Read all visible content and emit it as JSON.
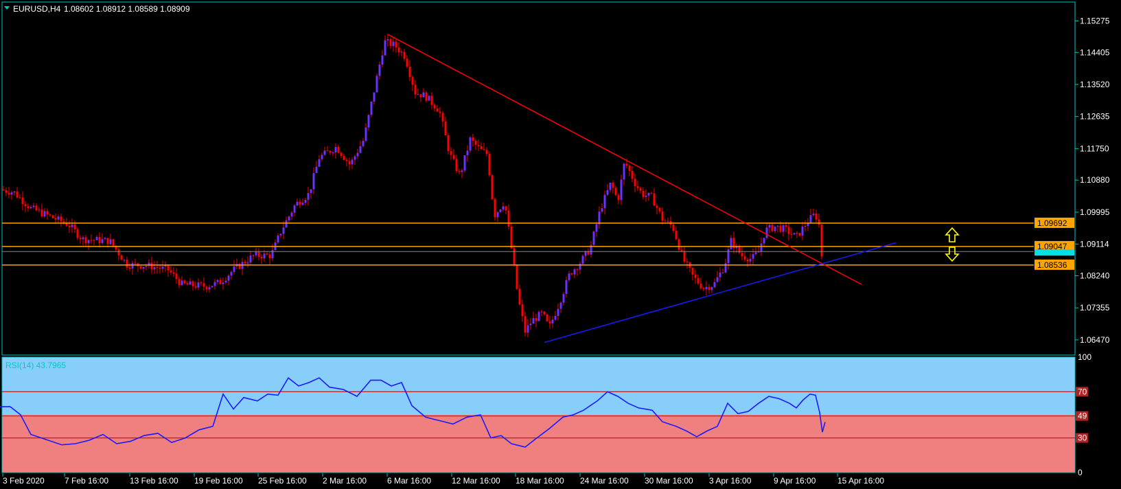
{
  "header": {
    "symbol": "EURUSD,H4",
    "ohlc": "1.08602 1.08912 1.08589 1.08909",
    "menu_icon": "triangle-down-icon"
  },
  "colors": {
    "background": "#000000",
    "grid_border": "#00c8c8",
    "axis_text": "#ffffff",
    "candle": "#6633ff",
    "candle_down": "#ff0000",
    "resistance_line": "#ff0000",
    "support_line": "#1a1aff",
    "level_line": "#ffa500",
    "level_label_bg": "#ffa500",
    "bid_label_bg": "#00e0e0",
    "rsi_upper_bg": "#87cefa",
    "rsi_lower_bg": "#f08080",
    "rsi_line": "#1a1aff",
    "rsi_level_line": "#b22222",
    "arrows": "#ffff00"
  },
  "chart_data": [
    {
      "type": "candlestick",
      "title": "EURUSD,H4",
      "ylim": [
        1.0605,
        1.157
      ],
      "y_ticks": [
        "1.15275",
        "1.14405",
        "1.13520",
        "1.12635",
        "1.11750",
        "1.10880",
        "1.09995",
        "1.09114",
        "1.08240",
        "1.07355",
        "1.06470"
      ],
      "x_ticks": [
        "3 Feb 2020",
        "7 Feb 16:00",
        "13 Feb 16:00",
        "19 Feb 16:00",
        "25 Feb 16:00",
        "2 Mar 16:00",
        "6 Mar 16:00",
        "12 Mar 16:00",
        "18 Mar 16:00",
        "24 Mar 16:00",
        "30 Mar 16:00",
        "3 Apr 16:00",
        "9 Apr 16:00",
        "15 Apr 16:00"
      ],
      "close_path": [
        [
          0,
          1.1062
        ],
        [
          20,
          1.1055
        ],
        [
          45,
          1.101
        ],
        [
          70,
          1.099
        ],
        [
          100,
          1.0965
        ],
        [
          120,
          1.0925
        ],
        [
          160,
          1.092
        ],
        [
          185,
          1.0855
        ],
        [
          215,
          1.0852
        ],
        [
          245,
          1.084
        ],
        [
          265,
          1.08
        ],
        [
          300,
          1.0795
        ],
        [
          320,
          1.0805
        ],
        [
          340,
          1.084
        ],
        [
          370,
          1.088
        ],
        [
          395,
          1.088
        ],
        [
          410,
          1.095
        ],
        [
          430,
          1.102
        ],
        [
          450,
          1.105
        ],
        [
          465,
          1.115
        ],
        [
          490,
          1.118
        ],
        [
          510,
          1.113
        ],
        [
          530,
          1.12
        ],
        [
          550,
          1.138
        ],
        [
          560,
          1.147
        ],
        [
          575,
          1.146
        ],
        [
          590,
          1.143
        ],
        [
          605,
          1.133
        ],
        [
          620,
          1.132
        ],
        [
          640,
          1.128
        ],
        [
          655,
          1.116
        ],
        [
          670,
          1.11
        ],
        [
          685,
          1.12
        ],
        [
          700,
          1.117
        ],
        [
          710,
          1.116
        ],
        [
          720,
          1.099
        ],
        [
          735,
          1.103
        ],
        [
          745,
          1.09
        ],
        [
          755,
          1.076
        ],
        [
          765,
          1.067
        ],
        [
          775,
          1.07
        ],
        [
          790,
          1.072
        ],
        [
          800,
          1.068
        ],
        [
          815,
          1.075
        ],
        [
          830,
          1.083
        ],
        [
          845,
          1.086
        ],
        [
          860,
          1.09
        ],
        [
          875,
          1.101
        ],
        [
          890,
          1.108
        ],
        [
          900,
          1.103
        ],
        [
          910,
          1.114
        ],
        [
          925,
          1.108
        ],
        [
          935,
          1.105
        ],
        [
          950,
          1.104
        ],
        [
          965,
          1.098
        ],
        [
          980,
          1.096
        ],
        [
          995,
          1.087
        ],
        [
          1010,
          1.082
        ],
        [
          1025,
          1.079
        ],
        [
          1040,
          1.08
        ],
        [
          1055,
          1.085
        ],
        [
          1065,
          1.092
        ],
        [
          1080,
          1.088
        ],
        [
          1095,
          1.087
        ],
        [
          1105,
          1.089
        ],
        [
          1115,
          1.095
        ],
        [
          1130,
          1.096
        ],
        [
          1145,
          1.095
        ],
        [
          1160,
          1.093
        ],
        [
          1175,
          1.097
        ],
        [
          1185,
          1.099
        ],
        [
          1192,
          1.0985
        ],
        [
          1197,
          1.088
        ],
        [
          1200,
          1.0891
        ]
      ],
      "levels": [
        {
          "value": 1.09692,
          "label": "1.09692"
        },
        {
          "value": 1.09047,
          "label": "1.09047"
        },
        {
          "value": 1.08536,
          "label": "1.08536"
        }
      ],
      "bid": {
        "value": 1.08909,
        "label": "1.08909"
      },
      "resistance_trendline": {
        "from": [
          565,
          1.149
        ],
        "to": [
          1255,
          1.08
        ]
      },
      "support_trendline": {
        "from": [
          793,
          1.064
        ],
        "to": [
          1305,
          1.0915
        ]
      },
      "arrows": [
        "up-arrow-icon",
        "down-arrow-icon"
      ]
    },
    {
      "type": "line",
      "title": "RSI(14) 43.7965",
      "ylim": [
        0,
        100
      ],
      "y_ticks": [
        "100",
        "70",
        "49",
        "30",
        "0"
      ],
      "levels": [
        70,
        49,
        30
      ],
      "series": [
        {
          "name": "RSI(14)",
          "values_path": [
            [
              0,
              57
            ],
            [
              15,
              57
            ],
            [
              30,
              50
            ],
            [
              45,
              33
            ],
            [
              60,
              30
            ],
            [
              75,
              27
            ],
            [
              90,
              24
            ],
            [
              110,
              25
            ],
            [
              130,
              28
            ],
            [
              150,
              33
            ],
            [
              170,
              25
            ],
            [
              190,
              27
            ],
            [
              210,
              32
            ],
            [
              230,
              34
            ],
            [
              250,
              26
            ],
            [
              270,
              30
            ],
            [
              290,
              37
            ],
            [
              310,
              40
            ],
            [
              325,
              68
            ],
            [
              340,
              55
            ],
            [
              355,
              65
            ],
            [
              375,
              62
            ],
            [
              390,
              68
            ],
            [
              405,
              67
            ],
            [
              420,
              82
            ],
            [
              435,
              75
            ],
            [
              450,
              78
            ],
            [
              465,
              82
            ],
            [
              480,
              74
            ],
            [
              500,
              72
            ],
            [
              520,
              66
            ],
            [
              540,
              80
            ],
            [
              555,
              80
            ],
            [
              570,
              75
            ],
            [
              585,
              78
            ],
            [
              600,
              58
            ],
            [
              620,
              48
            ],
            [
              640,
              45
            ],
            [
              660,
              42
            ],
            [
              680,
              48
            ],
            [
              700,
              50
            ],
            [
              715,
              30
            ],
            [
              730,
              32
            ],
            [
              745,
              25
            ],
            [
              765,
              22
            ],
            [
              780,
              29
            ],
            [
              800,
              38
            ],
            [
              820,
              48
            ],
            [
              835,
              50
            ],
            [
              850,
              54
            ],
            [
              870,
              62
            ],
            [
              885,
              70
            ],
            [
              900,
              66
            ],
            [
              915,
              60
            ],
            [
              930,
              56
            ],
            [
              950,
              54
            ],
            [
              965,
              44
            ],
            [
              985,
              40
            ],
            [
              1000,
              36
            ],
            [
              1015,
              31
            ],
            [
              1030,
              36
            ],
            [
              1045,
              40
            ],
            [
              1060,
              60
            ],
            [
              1075,
              51
            ],
            [
              1090,
              53
            ],
            [
              1105,
              60
            ],
            [
              1120,
              66
            ],
            [
              1135,
              64
            ],
            [
              1150,
              60
            ],
            [
              1160,
              56
            ],
            [
              1170,
              63
            ],
            [
              1180,
              68
            ],
            [
              1188,
              67
            ],
            [
              1194,
              52
            ],
            [
              1198,
              35
            ],
            [
              1202,
              43.7965
            ]
          ]
        }
      ]
    }
  ]
}
